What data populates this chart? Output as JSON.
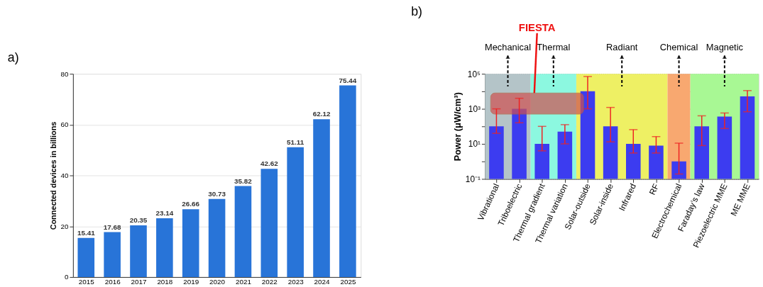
{
  "chart_data": [
    {
      "type": "bar",
      "title": "a)",
      "ylabel": "Connected devices in billions",
      "categories": [
        "2015",
        "2016",
        "2017",
        "2018",
        "2019",
        "2020",
        "2021",
        "2022",
        "2023",
        "2024",
        "2025"
      ],
      "values": [
        15.41,
        17.68,
        20.35,
        23.14,
        26.66,
        30.73,
        35.82,
        42.62,
        51.11,
        62.12,
        75.44
      ],
      "color": "#2874d8",
      "ylim": [
        0,
        80
      ],
      "yticks": [
        0,
        20,
        40,
        60,
        80
      ],
      "grid": "y",
      "data_labels": true
    },
    {
      "type": "bar",
      "title": "b)",
      "ylabel": "Power (μW/cm³)",
      "log": true,
      "categories": [
        "Vibrational",
        "Triboelectric",
        "Thermal gradient",
        "Thermal variation",
        "Solar-outside",
        "Solar-inside",
        "Infrared",
        "RF",
        "Electrochemical",
        "Faraday’s law",
        "Piezoelectric MME",
        "ME MME"
      ],
      "values": [
        100,
        1000,
        10,
        50,
        10000,
        100,
        10,
        8,
        1,
        100,
        360,
        5200
      ],
      "errors": [
        [
          40,
          1000
        ],
        [
          160,
          4000
        ],
        [
          4,
          100
        ],
        [
          10,
          125
        ],
        [
          1000,
          70000
        ],
        [
          13,
          1200
        ],
        [
          3,
          65
        ],
        [
          3,
          26
        ],
        [
          0.19,
          11
        ],
        [
          8,
          400
        ],
        [
          75,
          580
        ],
        [
          680,
          11000
        ]
      ],
      "color": "#3c3cf0",
      "ylim": [
        0.1,
        100000
      ],
      "yticks": [
        {
          "value": 0.1,
          "label": "10⁻¹"
        },
        {
          "value": 1,
          "label": null
        },
        {
          "value": 10,
          "label": "10¹"
        },
        {
          "value": 100,
          "label": null
        },
        {
          "value": 1000,
          "label": "10³"
        },
        {
          "value": 10000,
          "label": null
        },
        {
          "value": 100000,
          "label": "10⁵"
        }
      ],
      "grid": "y",
      "line_style": "dotted",
      "bands": [
        {
          "axis": "x",
          "from": "Vibrational",
          "to": "Triboelectric",
          "label": "Mechanical",
          "color": "#b4c4c8"
        },
        {
          "axis": "x",
          "from": "Thermal gradient",
          "to": "Thermal variation",
          "label": "Thermal",
          "color": "#8cf8e0"
        },
        {
          "axis": "x",
          "from": "Solar-outside",
          "to": "RF",
          "label": "Radiant",
          "color": "#eef064"
        },
        {
          "axis": "x",
          "from": "Electrochemical",
          "to": "Electrochemical",
          "label": "Chemical",
          "color": "#f8a870"
        },
        {
          "axis": "x",
          "from": "Faraday’s law",
          "to": "ME MME",
          "label": "Magnetic",
          "color": "#a8f894"
        },
        {
          "axis": "y",
          "from": 500,
          "to": 8000,
          "label": "FIESTA",
          "color": "#d05050"
        }
      ]
    }
  ]
}
